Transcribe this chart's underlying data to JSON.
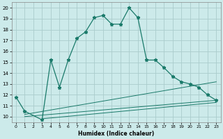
{
  "title": "",
  "xlabel": "Humidex (Indice chaleur)",
  "ylabel": "",
  "background_color": "#cceaea",
  "grid_color": "#aacccc",
  "line_color": "#1a7a6a",
  "xlim": [
    -0.5,
    23.5
  ],
  "ylim": [
    9.5,
    20.5
  ],
  "xticks": [
    0,
    1,
    2,
    3,
    4,
    5,
    6,
    7,
    8,
    9,
    10,
    11,
    12,
    13,
    14,
    15,
    16,
    17,
    18,
    19,
    20,
    21,
    22,
    23
  ],
  "yticks": [
    10,
    11,
    12,
    13,
    14,
    15,
    16,
    17,
    18,
    19,
    20
  ],
  "main_x": [
    0,
    1,
    3,
    4,
    5,
    6,
    7,
    8,
    9,
    10,
    11,
    12,
    13,
    14,
    15,
    16,
    17,
    18,
    19,
    20,
    21,
    22,
    23
  ],
  "main_y": [
    11.8,
    10.5,
    9.7,
    15.2,
    12.7,
    15.2,
    17.2,
    17.8,
    19.1,
    19.3,
    18.5,
    18.5,
    20.0,
    19.1,
    15.2,
    15.2,
    14.5,
    13.7,
    13.2,
    13.0,
    12.7,
    12.0,
    11.5
  ],
  "line2_x": [
    1,
    23
  ],
  "line2_y": [
    10.0,
    11.5
  ],
  "line3_x": [
    1,
    23
  ],
  "line3_y": [
    10.2,
    13.2
  ],
  "line4_x": [
    3,
    23
  ],
  "line4_y": [
    9.8,
    11.3
  ]
}
